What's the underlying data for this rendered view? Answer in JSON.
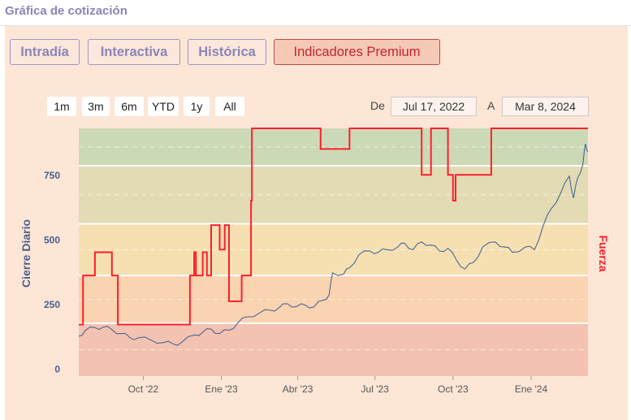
{
  "header": {
    "title": "Gráfica de cotización"
  },
  "tabs": [
    {
      "label": "Intradía",
      "active": false
    },
    {
      "label": "Interactiva",
      "active": false
    },
    {
      "label": "Histórica",
      "active": false
    },
    {
      "label": "Indicadores Premium",
      "active": true
    }
  ],
  "range_buttons": [
    "1m",
    "3m",
    "6m",
    "YTD",
    "1y",
    "All"
  ],
  "date_range": {
    "from_label": "De",
    "from": "Jul 17, 2022",
    "to_label": "A",
    "to": "Mar 8, 2024"
  },
  "colors": {
    "panel": "#fde6d6",
    "accent": "#c4252c",
    "line": "#4a6696",
    "strength": "#ff1e2d"
  },
  "chart_data": {
    "type": "line",
    "title": "",
    "ylabel": "Cierre Diario",
    "y2label": "Fuerza",
    "yticks": [
      0,
      250,
      500,
      750
    ],
    "ylim": [
      -30,
      930
    ],
    "x_ticks": [
      {
        "label": "Oct '22",
        "date": "2022-10-01"
      },
      {
        "label": "Ene '23",
        "date": "2023-01-01"
      },
      {
        "label": "Abr '23",
        "date": "2023-04-01"
      },
      {
        "label": "Jul '23",
        "date": "2023-07-01"
      },
      {
        "label": "Oct '23",
        "date": "2023-10-01"
      },
      {
        "label": "Ene '24",
        "date": "2024-01-01"
      }
    ],
    "xlim": [
      "2022-07-17",
      "2024-03-08"
    ],
    "zones": [
      {
        "from": 785,
        "to": 930,
        "color": "#cbd9b6"
      },
      {
        "from": 560,
        "to": 785,
        "color": "#e2dbb3"
      },
      {
        "from": 360,
        "to": 560,
        "color": "#f6e0b2"
      },
      {
        "from": 175,
        "to": 360,
        "color": "#fad3b0"
      },
      {
        "from": -30,
        "to": 175,
        "color": "#f3c2b0"
      }
    ],
    "series": [
      {
        "type": "line",
        "points": [
          [
            "2022-07-17",
            125
          ],
          [
            "2022-07-25",
            148
          ],
          [
            "2022-08-05",
            158
          ],
          [
            "2022-08-15",
            160
          ],
          [
            "2022-08-25",
            150
          ],
          [
            "2022-09-05",
            135
          ],
          [
            "2022-09-15",
            120
          ],
          [
            "2022-09-25",
            118
          ],
          [
            "2022-10-10",
            110
          ],
          [
            "2022-10-25",
            100
          ],
          [
            "2022-11-05",
            95
          ],
          [
            "2022-11-15",
            100
          ],
          [
            "2022-12-01",
            130
          ],
          [
            "2022-12-10",
            140
          ],
          [
            "2022-12-20",
            152
          ],
          [
            "2022-12-30",
            135
          ],
          [
            "2023-01-10",
            148
          ],
          [
            "2023-01-20",
            175
          ],
          [
            "2023-02-01",
            200
          ],
          [
            "2023-02-15",
            215
          ],
          [
            "2023-02-28",
            225
          ],
          [
            "2023-03-10",
            235
          ],
          [
            "2023-03-20",
            250
          ],
          [
            "2023-03-31",
            240
          ],
          [
            "2023-04-10",
            245
          ],
          [
            "2023-04-20",
            238
          ],
          [
            "2023-05-01",
            265
          ],
          [
            "2023-05-08",
            285
          ],
          [
            "2023-05-12",
            370
          ],
          [
            "2023-05-25",
            365
          ],
          [
            "2023-06-01",
            390
          ],
          [
            "2023-06-12",
            440
          ],
          [
            "2023-06-25",
            455
          ],
          [
            "2023-07-05",
            450
          ],
          [
            "2023-07-15",
            460
          ],
          [
            "2023-07-28",
            470
          ],
          [
            "2023-08-05",
            485
          ],
          [
            "2023-08-15",
            460
          ],
          [
            "2023-08-25",
            490
          ],
          [
            "2023-09-05",
            478
          ],
          [
            "2023-09-15",
            455
          ],
          [
            "2023-09-25",
            465
          ],
          [
            "2023-10-05",
            420
          ],
          [
            "2023-10-15",
            385
          ],
          [
            "2023-10-25",
            410
          ],
          [
            "2023-11-05",
            470
          ],
          [
            "2023-11-20",
            490
          ],
          [
            "2023-12-01",
            470
          ],
          [
            "2023-12-10",
            450
          ],
          [
            "2023-12-25",
            470
          ],
          [
            "2024-01-05",
            460
          ],
          [
            "2024-01-15",
            550
          ],
          [
            "2024-01-25",
            620
          ],
          [
            "2024-02-05",
            680
          ],
          [
            "2024-02-15",
            745
          ],
          [
            "2024-02-20",
            660
          ],
          [
            "2024-02-25",
            740
          ],
          [
            "2024-03-02",
            790
          ],
          [
            "2024-03-05",
            870
          ],
          [
            "2024-03-08",
            840
          ]
        ]
      },
      {
        "type": "step",
        "points": [
          [
            "2022-07-17",
            170
          ],
          [
            "2022-07-22",
            360
          ],
          [
            "2022-08-05",
            450
          ],
          [
            "2022-08-25",
            360
          ],
          [
            "2022-09-01",
            170
          ],
          [
            "2022-11-25",
            360
          ],
          [
            "2022-11-30",
            450
          ],
          [
            "2022-12-02",
            360
          ],
          [
            "2022-12-10",
            450
          ],
          [
            "2022-12-15",
            360
          ],
          [
            "2022-12-20",
            555
          ],
          [
            "2022-12-30",
            460
          ],
          [
            "2023-01-05",
            555
          ],
          [
            "2023-01-10",
            260
          ],
          [
            "2023-01-25",
            360
          ],
          [
            "2023-02-05",
            650
          ],
          [
            "2023-02-06",
            930
          ],
          [
            "2023-04-28",
            850
          ],
          [
            "2023-06-01",
            930
          ],
          [
            "2023-08-25",
            750
          ],
          [
            "2023-09-05",
            930
          ],
          [
            "2023-09-25",
            750
          ],
          [
            "2023-10-01",
            650
          ],
          [
            "2023-10-04",
            750
          ],
          [
            "2023-11-15",
            930
          ],
          [
            "2024-03-08",
            930
          ]
        ]
      }
    ]
  }
}
